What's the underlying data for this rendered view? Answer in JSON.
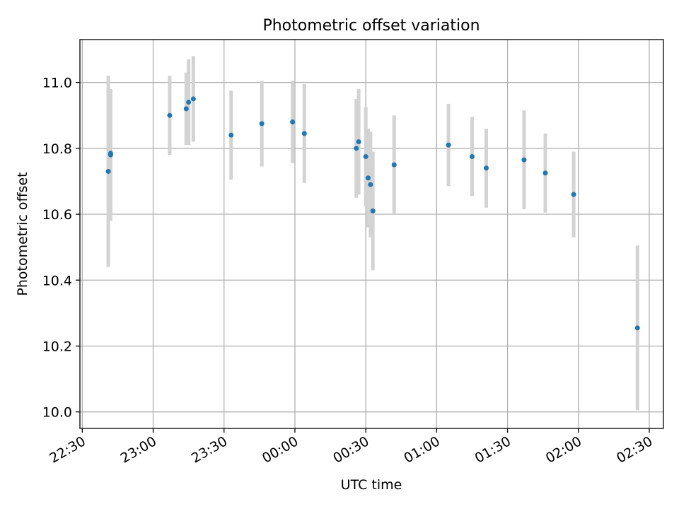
{
  "chart_data": {
    "type": "scatter",
    "title": "Photometric offset variation",
    "xlabel": "UTC time",
    "ylabel": "Photometric offset",
    "x_ticks": [
      "22:30",
      "23:00",
      "23:30",
      "00:00",
      "00:30",
      "01:00",
      "01:30",
      "02:00",
      "02:30"
    ],
    "y_ticks": [
      "10.0",
      "10.2",
      "10.4",
      "10.6",
      "10.8",
      "11.0"
    ],
    "xlim": [
      "22:29",
      "02:36"
    ],
    "ylim": [
      9.95,
      11.13
    ],
    "grid": true,
    "colors": {
      "point": "#1f77b4",
      "errorbar": "#d3d3d3",
      "grid": "#b0b0b0"
    },
    "series": [
      {
        "points": [
          {
            "x": "22:41",
            "y": 10.73,
            "yerr": 0.29
          },
          {
            "x": "22:42",
            "y": 10.78,
            "yerr": 0.2
          },
          {
            "x": "22:42",
            "y": 10.785,
            "yerr": 0.18
          },
          {
            "x": "23:07",
            "y": 10.9,
            "yerr": 0.12
          },
          {
            "x": "23:14",
            "y": 10.92,
            "yerr": 0.11
          },
          {
            "x": "23:15",
            "y": 10.94,
            "yerr": 0.13
          },
          {
            "x": "23:17",
            "y": 10.95,
            "yerr": 0.13
          },
          {
            "x": "23:33",
            "y": 10.84,
            "yerr": 0.135
          },
          {
            "x": "23:46",
            "y": 10.875,
            "yerr": 0.13
          },
          {
            "x": "23:59",
            "y": 10.88,
            "yerr": 0.125
          },
          {
            "x": "00:04",
            "y": 10.845,
            "yerr": 0.15
          },
          {
            "x": "00:26",
            "y": 10.8,
            "yerr": 0.15
          },
          {
            "x": "00:27",
            "y": 10.82,
            "yerr": 0.16
          },
          {
            "x": "00:30",
            "y": 10.775,
            "yerr": 0.15
          },
          {
            "x": "00:31",
            "y": 10.71,
            "yerr": 0.15
          },
          {
            "x": "00:32",
            "y": 10.69,
            "yerr": 0.16
          },
          {
            "x": "00:33",
            "y": 10.61,
            "yerr": 0.18
          },
          {
            "x": "00:42",
            "y": 10.75,
            "yerr": 0.15
          },
          {
            "x": "01:05",
            "y": 10.81,
            "yerr": 0.125
          },
          {
            "x": "01:15",
            "y": 10.775,
            "yerr": 0.12
          },
          {
            "x": "01:21",
            "y": 10.74,
            "yerr": 0.12
          },
          {
            "x": "01:37",
            "y": 10.765,
            "yerr": 0.15
          },
          {
            "x": "01:46",
            "y": 10.725,
            "yerr": 0.12
          },
          {
            "x": "01:58",
            "y": 10.66,
            "yerr": 0.13
          },
          {
            "x": "02:25",
            "y": 10.255,
            "yerr": 0.25
          }
        ]
      }
    ]
  }
}
